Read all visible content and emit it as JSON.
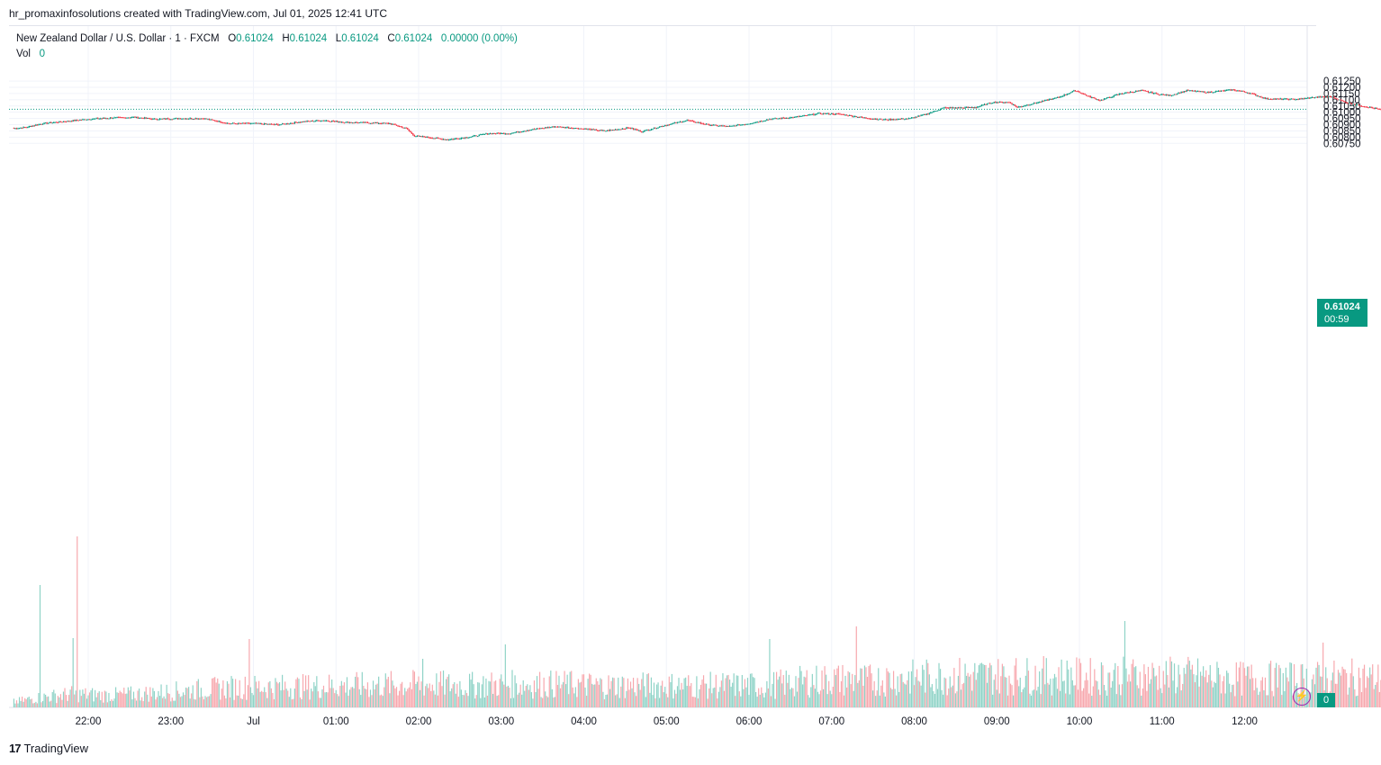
{
  "header": {
    "credit": "hr_promaxinfosolutions created with TradingView.com, Jul 01, 2025 12:41 UTC"
  },
  "legend": {
    "symbol": "New Zealand Dollar / U.S. Dollar · 1 · FXCM",
    "o_label": "O",
    "o_value": "0.61024",
    "h_label": "H",
    "h_value": "0.61024",
    "l_label": "L",
    "l_value": "0.61024",
    "c_label": "C",
    "c_value": "0.61024",
    "change": "0.00000 (0.00%)",
    "vol_label": "Vol",
    "vol_value": "0"
  },
  "price_tag": {
    "price": "0.61024",
    "countdown": "00:59"
  },
  "vol_tag": "0",
  "brand": {
    "logo": "17",
    "name": "TradingView"
  },
  "colors": {
    "up": "#089981",
    "down": "#f23645",
    "grid": "#f0f3fa",
    "text": "#131722"
  },
  "chart_data": {
    "type": "candlestick",
    "interval": "1 minute",
    "y_ticks": [
      "0.61250",
      "0.61200",
      "0.61150",
      "0.61100",
      "0.61050",
      "0.61000",
      "0.60950",
      "0.60900",
      "0.60850",
      "0.60800",
      "0.60750"
    ],
    "ylim": [
      0.6073,
      0.6125
    ],
    "x_ticks": [
      "22:00",
      "23:00",
      "Jul",
      "01:00",
      "02:00",
      "03:00",
      "04:00",
      "05:00",
      "06:00",
      "07:00",
      "08:00",
      "09:00",
      "10:00",
      "11:00",
      "12:00"
    ],
    "last_price": 0.61024,
    "close_path": [
      [
        21.1,
        0.6087
      ],
      [
        21.25,
        0.6088
      ],
      [
        21.45,
        0.6091
      ],
      [
        21.7,
        0.60925
      ],
      [
        22.0,
        0.60945
      ],
      [
        22.3,
        0.60955
      ],
      [
        22.55,
        0.6096
      ],
      [
        22.8,
        0.60945
      ],
      [
        23.1,
        0.6095
      ],
      [
        23.4,
        0.6095
      ],
      [
        23.7,
        0.6091
      ],
      [
        24.0,
        0.6091
      ],
      [
        24.3,
        0.609
      ],
      [
        24.6,
        0.60925
      ],
      [
        24.85,
        0.60935
      ],
      [
        25.1,
        0.6092
      ],
      [
        25.4,
        0.60915
      ],
      [
        25.65,
        0.6091
      ],
      [
        25.85,
        0.6087
      ],
      [
        25.95,
        0.6081
      ],
      [
        26.1,
        0.608
      ],
      [
        26.35,
        0.6078
      ],
      [
        26.6,
        0.608
      ],
      [
        26.85,
        0.6083
      ],
      [
        27.1,
        0.6083
      ],
      [
        27.35,
        0.6086
      ],
      [
        27.65,
        0.60885
      ],
      [
        27.95,
        0.6087
      ],
      [
        28.25,
        0.6085
      ],
      [
        28.55,
        0.60875
      ],
      [
        28.7,
        0.60845
      ],
      [
        28.95,
        0.6089
      ],
      [
        29.25,
        0.60935
      ],
      [
        29.5,
        0.609
      ],
      [
        29.75,
        0.60885
      ],
      [
        30.0,
        0.6091
      ],
      [
        30.25,
        0.60945
      ],
      [
        30.55,
        0.6096
      ],
      [
        30.85,
        0.6099
      ],
      [
        31.1,
        0.60985
      ],
      [
        31.4,
        0.60955
      ],
      [
        31.65,
        0.6094
      ],
      [
        31.95,
        0.6095
      ],
      [
        32.15,
        0.60985
      ],
      [
        32.35,
        0.61035
      ],
      [
        32.55,
        0.61035
      ],
      [
        32.75,
        0.6104
      ],
      [
        32.95,
        0.6108
      ],
      [
        33.15,
        0.6108
      ],
      [
        33.25,
        0.6104
      ],
      [
        33.5,
        0.6108
      ],
      [
        33.75,
        0.6112
      ],
      [
        33.95,
        0.61175
      ],
      [
        34.1,
        0.6113
      ],
      [
        34.25,
        0.61095
      ],
      [
        34.5,
        0.6115
      ],
      [
        34.75,
        0.61175
      ],
      [
        34.95,
        0.61145
      ],
      [
        35.1,
        0.61135
      ],
      [
        35.3,
        0.61175
      ],
      [
        35.55,
        0.6116
      ],
      [
        35.7,
        0.6117
      ],
      [
        35.85,
        0.6118
      ],
      [
        36.0,
        0.61165
      ],
      [
        36.1,
        0.61145
      ],
      [
        36.25,
        0.6111
      ],
      [
        36.45,
        0.61105
      ],
      [
        36.65,
        0.61105
      ],
      [
        36.85,
        0.6112
      ],
      [
        37.05,
        0.61125
      ],
      [
        37.2,
        0.61085
      ],
      [
        37.35,
        0.6106
      ],
      [
        37.55,
        0.61035
      ],
      [
        37.65,
        0.6102
      ]
    ],
    "volume_profile": [
      [
        21.1,
        9
      ],
      [
        21.4,
        16
      ],
      [
        21.8,
        22
      ],
      [
        22.2,
        20
      ],
      [
        22.6,
        22
      ],
      [
        23.0,
        26
      ],
      [
        23.4,
        30
      ],
      [
        23.8,
        33
      ],
      [
        24.2,
        34
      ],
      [
        24.6,
        34
      ],
      [
        25.0,
        36
      ],
      [
        25.4,
        36
      ],
      [
        25.8,
        38
      ],
      [
        26.2,
        38
      ],
      [
        26.6,
        36
      ],
      [
        27.0,
        38
      ],
      [
        27.4,
        38
      ],
      [
        27.8,
        38
      ],
      [
        28.2,
        36
      ],
      [
        28.6,
        36
      ],
      [
        29.0,
        36
      ],
      [
        29.4,
        36
      ],
      [
        29.8,
        36
      ],
      [
        30.2,
        36
      ],
      [
        30.6,
        42
      ],
      [
        31.0,
        46
      ],
      [
        31.4,
        44
      ],
      [
        31.8,
        48
      ],
      [
        32.2,
        50
      ],
      [
        32.6,
        52
      ],
      [
        33.0,
        52
      ],
      [
        33.4,
        52
      ],
      [
        33.8,
        52
      ],
      [
        34.2,
        50
      ],
      [
        34.6,
        52
      ],
      [
        35.0,
        52
      ],
      [
        35.4,
        52
      ],
      [
        35.8,
        46
      ],
      [
        36.2,
        48
      ],
      [
        36.6,
        46
      ],
      [
        37.0,
        48
      ],
      [
        37.4,
        50
      ],
      [
        37.65,
        46
      ]
    ],
    "volume_spikes": [
      [
        21.42,
        136
      ],
      [
        21.86,
        190
      ],
      [
        21.82,
        77
      ],
      [
        23.95,
        76
      ],
      [
        26.05,
        54
      ],
      [
        27.05,
        70
      ],
      [
        30.25,
        76
      ],
      [
        31.3,
        90
      ],
      [
        34.55,
        96
      ],
      [
        36.95,
        72
      ]
    ]
  }
}
